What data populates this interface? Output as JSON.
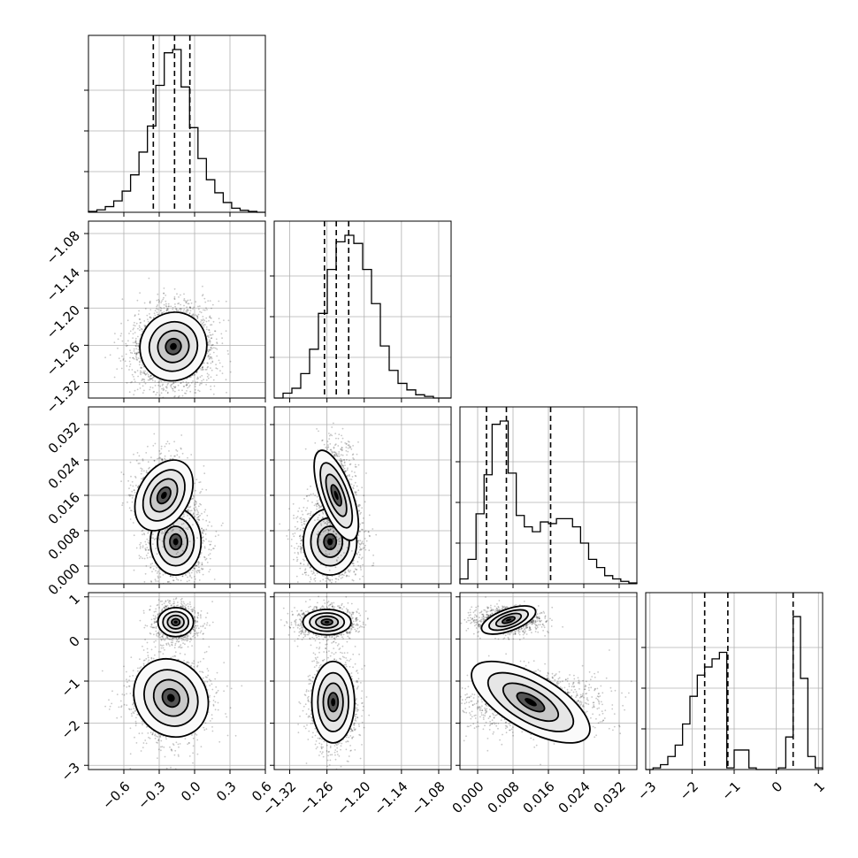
{
  "chart_data": {
    "type": "corner",
    "grid": true,
    "colors": {
      "line": "#000000",
      "grid": "#b0b0b0",
      "scatter": "#000000",
      "background": "#ffffff"
    },
    "parameters": [
      {
        "range": [
          -0.9,
          0.6
        ],
        "quantiles": [
          -0.35,
          -0.17,
          -0.04
        ],
        "ticks": [
          -0.6,
          -0.3,
          0.0,
          0.3,
          0.6
        ],
        "tick_labels": [
          "−0.6",
          "−0.3",
          "0.0",
          "0.3",
          "0.6"
        ]
      },
      {
        "range": [
          -1.345,
          -1.06
        ],
        "quantiles": [
          -1.264,
          -1.245,
          -1.225
        ],
        "ticks": [
          -1.32,
          -1.26,
          -1.2,
          -1.14,
          -1.08
        ],
        "tick_labels": [
          "−1.32",
          "−1.26",
          "−1.20",
          "−1.14",
          "−1.08"
        ]
      },
      {
        "range": [
          -0.004,
          0.036
        ],
        "quantiles": [
          0.002,
          0.0065,
          0.0165
        ],
        "ticks": [
          0.0,
          0.008,
          0.016,
          0.024,
          0.032
        ],
        "tick_labels": [
          "0.000",
          "0.008",
          "0.016",
          "0.024",
          "0.032"
        ]
      },
      {
        "range": [
          -3.1,
          1.1
        ],
        "quantiles": [
          -1.7,
          -1.15,
          0.4
        ],
        "ticks": [
          -3,
          -2,
          -1,
          0,
          1
        ],
        "tick_labels": [
          "−3",
          "−2",
          "−1",
          "0",
          "1"
        ]
      }
    ],
    "histograms": [
      {
        "counts": [
          0.005,
          0.015,
          0.035,
          0.07,
          0.13,
          0.23,
          0.37,
          0.53,
          0.78,
          0.98,
          1.0,
          0.77,
          0.52,
          0.33,
          0.2,
          0.12,
          0.06,
          0.025,
          0.012,
          0.005,
          0.0
        ]
      },
      {
        "counts": [
          0.0,
          0.03,
          0.06,
          0.15,
          0.3,
          0.52,
          0.79,
          0.96,
          1.0,
          0.95,
          0.79,
          0.58,
          0.32,
          0.17,
          0.09,
          0.05,
          0.02,
          0.01,
          0.0,
          0.0
        ]
      },
      {
        "counts": [
          0.03,
          0.15,
          0.43,
          0.67,
          0.98,
          1.0,
          0.68,
          0.42,
          0.35,
          0.32,
          0.38,
          0.37,
          0.4,
          0.4,
          0.35,
          0.25,
          0.15,
          0.1,
          0.05,
          0.03,
          0.015,
          0.005
        ]
      },
      {
        "counts": [
          0.0,
          0.01,
          0.03,
          0.08,
          0.15,
          0.28,
          0.45,
          0.58,
          0.63,
          0.68,
          0.72,
          0.01,
          0.12,
          0.12,
          0.01,
          0.0,
          0.0,
          0.0,
          0.01,
          0.2,
          0.94,
          0.56,
          0.08,
          0.01
        ]
      }
    ],
    "panels": [
      {
        "x": 0,
        "y": 1,
        "modes": [
          {
            "cx": -0.18,
            "cy": -1.262,
            "sx": 0.13,
            "sy": 0.026,
            "rot": -30,
            "w": 1
          }
        ]
      },
      {
        "x": 0,
        "y": 2,
        "modes": [
          {
            "cx": -0.16,
            "cy": 0.0055,
            "sx": 0.1,
            "sy": 0.0035,
            "rot": 0,
            "w": 0.6
          },
          {
            "cx": -0.26,
            "cy": 0.016,
            "sx": 0.1,
            "sy": 0.004,
            "rot": -30,
            "w": 0.4
          }
        ]
      },
      {
        "x": 1,
        "y": 2,
        "modes": [
          {
            "cx": -1.255,
            "cy": 0.0055,
            "sx": 0.02,
            "sy": 0.0035,
            "rot": 0,
            "w": 0.6
          },
          {
            "cx": -1.245,
            "cy": 0.016,
            "sx": 0.012,
            "sy": 0.005,
            "rot": 20,
            "w": 0.4
          }
        ]
      },
      {
        "x": 0,
        "y": 3,
        "modes": [
          {
            "cx": -0.16,
            "cy": 0.4,
            "sx": 0.07,
            "sy": 0.16,
            "rot": 0,
            "w": 0.5
          },
          {
            "cx": -0.2,
            "cy": -1.4,
            "sx": 0.14,
            "sy": 0.45,
            "rot": 35,
            "w": 0.5
          }
        ]
      },
      {
        "x": 1,
        "y": 3,
        "modes": [
          {
            "cx": -1.26,
            "cy": 0.4,
            "sx": 0.018,
            "sy": 0.14,
            "rot": 0,
            "w": 0.5
          },
          {
            "cx": -1.25,
            "cy": -1.5,
            "sx": 0.016,
            "sy": 0.45,
            "rot": 0,
            "w": 0.5
          }
        ]
      },
      {
        "x": 2,
        "y": 3,
        "modes": [
          {
            "cx": 0.007,
            "cy": 0.45,
            "sx": 0.003,
            "sy": 0.12,
            "rot": 20,
            "w": 0.5
          },
          {
            "cx": 0.012,
            "cy": -1.5,
            "sx": 0.007,
            "sy": 0.3,
            "rot": -30,
            "w": 0.5
          }
        ]
      }
    ]
  }
}
